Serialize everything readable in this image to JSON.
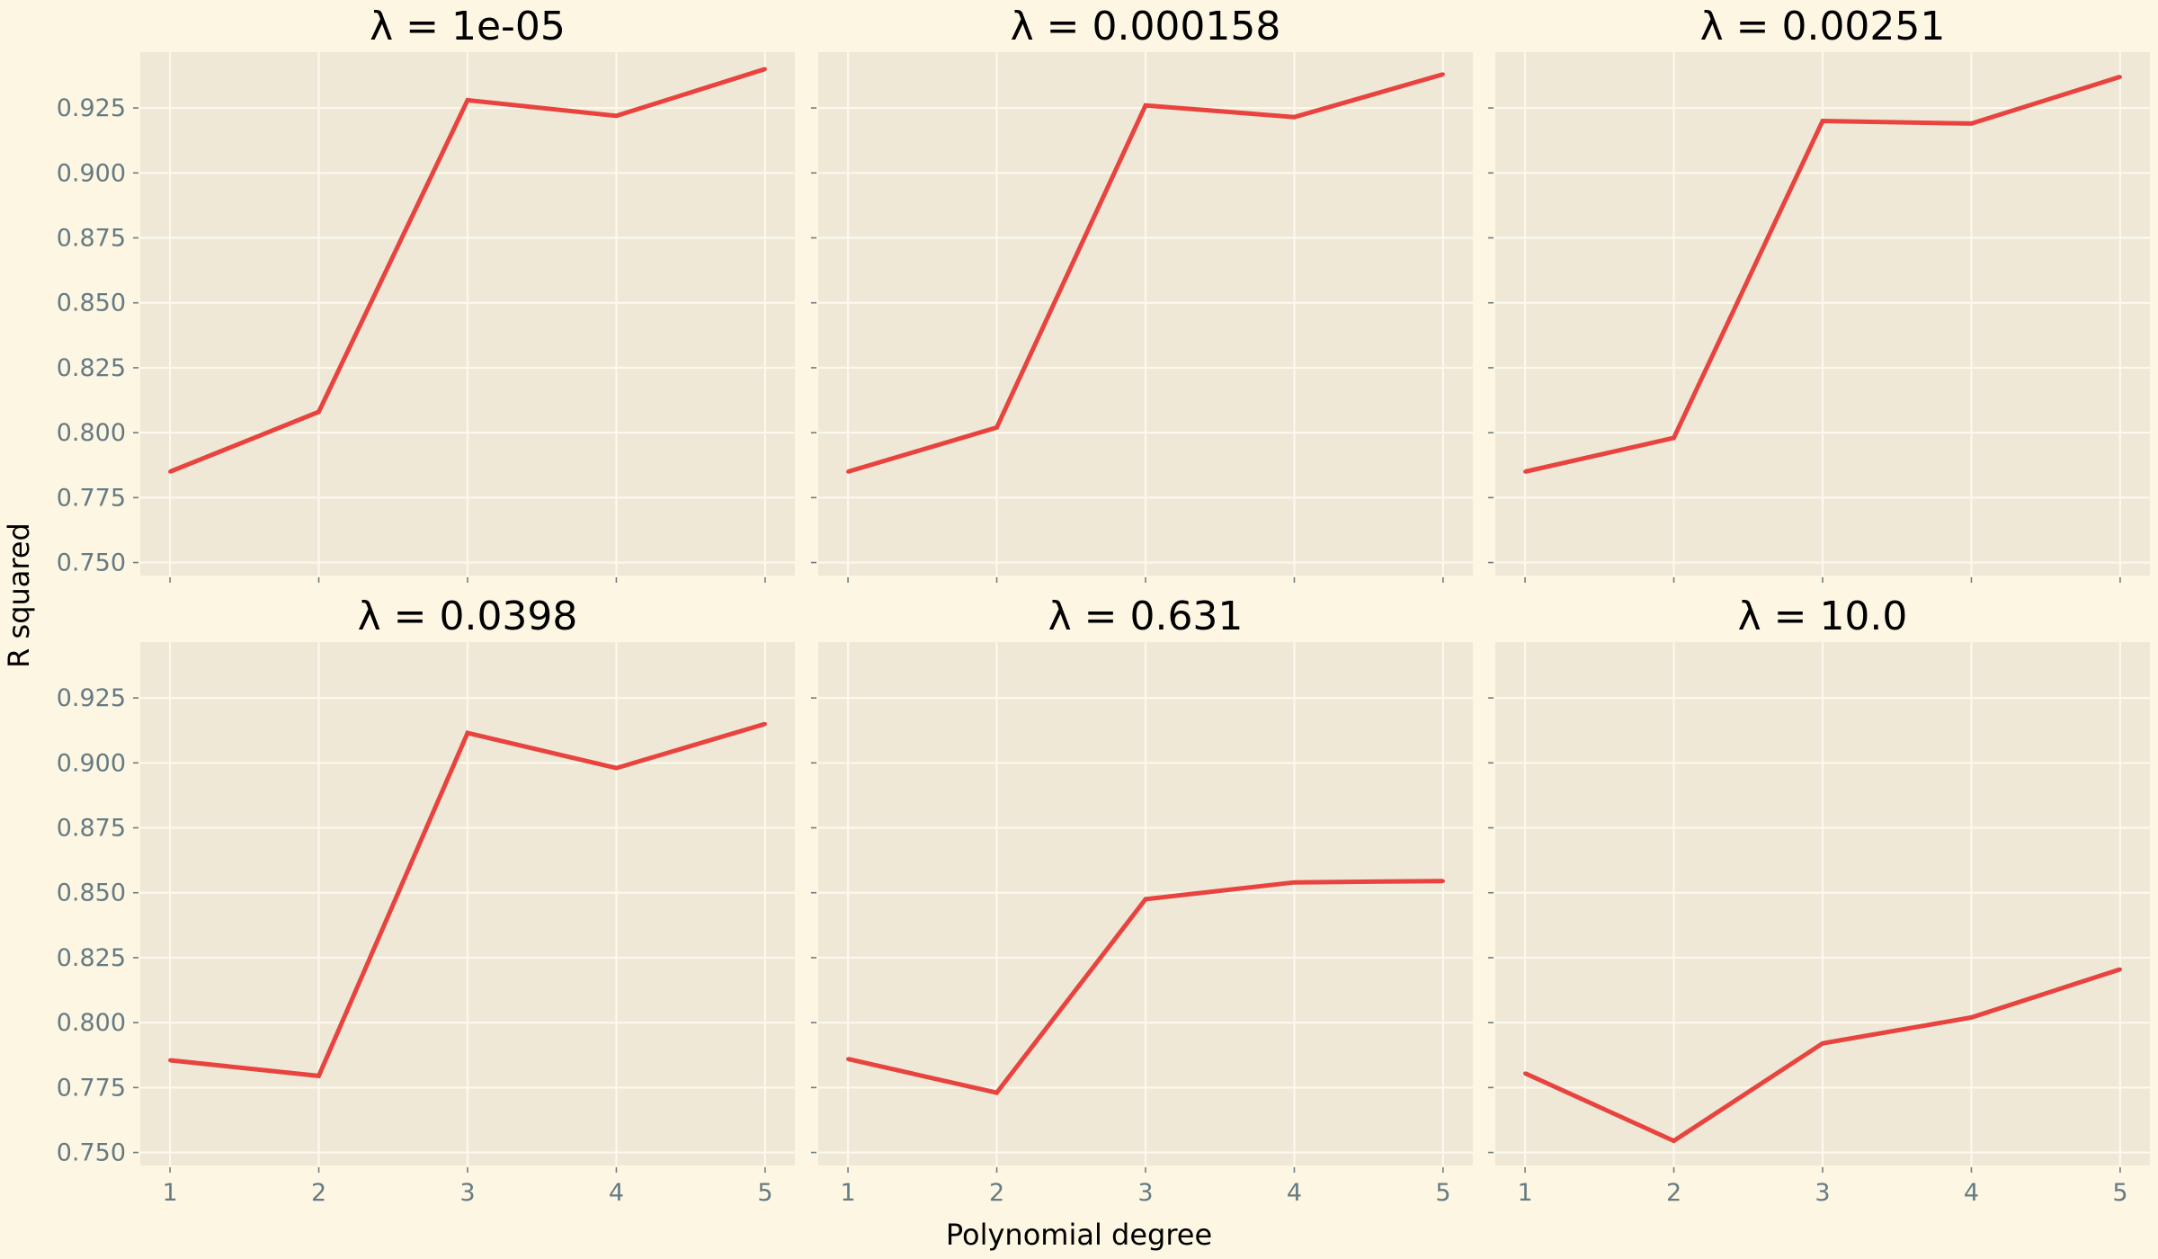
{
  "figure": {
    "xlabel": "Polynomial degree",
    "ylabel": "R squared"
  },
  "colors": {
    "background": "#fdf6e3",
    "panel": "#efe8d6",
    "grid": "#fbf8ee",
    "line": "#e8433f",
    "tick_text": "#657b83"
  },
  "chart_data": [
    {
      "type": "line",
      "title": "λ = 1e-05",
      "x": [
        1,
        2,
        3,
        4,
        5
      ],
      "y": [
        0.785,
        0.808,
        0.928,
        0.922,
        0.94
      ],
      "xlim": [
        0.8,
        5.2
      ],
      "ylim": [
        0.745,
        0.9465
      ],
      "xticks": [
        "1",
        "2",
        "3",
        "4",
        "5"
      ],
      "yticks": [
        "0.750",
        "0.775",
        "0.800",
        "0.825",
        "0.850",
        "0.875",
        "0.900",
        "0.925"
      ],
      "grid": true
    },
    {
      "type": "line",
      "title": "λ = 0.000158",
      "x": [
        1,
        2,
        3,
        4,
        5
      ],
      "y": [
        0.785,
        0.802,
        0.926,
        0.9215,
        0.938
      ],
      "xlim": [
        0.8,
        5.2
      ],
      "ylim": [
        0.745,
        0.9465
      ],
      "xticks": [
        "1",
        "2",
        "3",
        "4",
        "5"
      ],
      "yticks": [
        "0.750",
        "0.775",
        "0.800",
        "0.825",
        "0.850",
        "0.875",
        "0.900",
        "0.925"
      ],
      "grid": true
    },
    {
      "type": "line",
      "title": "λ = 0.00251",
      "x": [
        1,
        2,
        3,
        4,
        5
      ],
      "y": [
        0.785,
        0.798,
        0.92,
        0.919,
        0.937
      ],
      "xlim": [
        0.8,
        5.2
      ],
      "ylim": [
        0.745,
        0.9465
      ],
      "xticks": [
        "1",
        "2",
        "3",
        "4",
        "5"
      ],
      "yticks": [
        "0.750",
        "0.775",
        "0.800",
        "0.825",
        "0.850",
        "0.875",
        "0.900",
        "0.925"
      ],
      "grid": true
    },
    {
      "type": "line",
      "title": "λ = 0.0398",
      "x": [
        1,
        2,
        3,
        4,
        5
      ],
      "y": [
        0.7855,
        0.7795,
        0.9115,
        0.898,
        0.915
      ],
      "xlim": [
        0.8,
        5.2
      ],
      "ylim": [
        0.745,
        0.9465
      ],
      "xticks": [
        "1",
        "2",
        "3",
        "4",
        "5"
      ],
      "yticks": [
        "0.750",
        "0.775",
        "0.800",
        "0.825",
        "0.850",
        "0.875",
        "0.900",
        "0.925"
      ],
      "grid": true
    },
    {
      "type": "line",
      "title": "λ = 0.631",
      "x": [
        1,
        2,
        3,
        4,
        5
      ],
      "y": [
        0.786,
        0.773,
        0.8475,
        0.854,
        0.8545
      ],
      "xlim": [
        0.8,
        5.2
      ],
      "ylim": [
        0.745,
        0.9465
      ],
      "xticks": [
        "1",
        "2",
        "3",
        "4",
        "5"
      ],
      "yticks": [
        "0.750",
        "0.775",
        "0.800",
        "0.825",
        "0.850",
        "0.875",
        "0.900",
        "0.925"
      ],
      "grid": true
    },
    {
      "type": "line",
      "title": "λ = 10.0",
      "x": [
        1,
        2,
        3,
        4,
        5
      ],
      "y": [
        0.7805,
        0.7545,
        0.792,
        0.802,
        0.8205
      ],
      "xlim": [
        0.8,
        5.2
      ],
      "ylim": [
        0.745,
        0.9465
      ],
      "xticks": [
        "1",
        "2",
        "3",
        "4",
        "5"
      ],
      "yticks": [
        "0.750",
        "0.775",
        "0.800",
        "0.825",
        "0.850",
        "0.875",
        "0.900",
        "0.925"
      ],
      "grid": true
    }
  ]
}
